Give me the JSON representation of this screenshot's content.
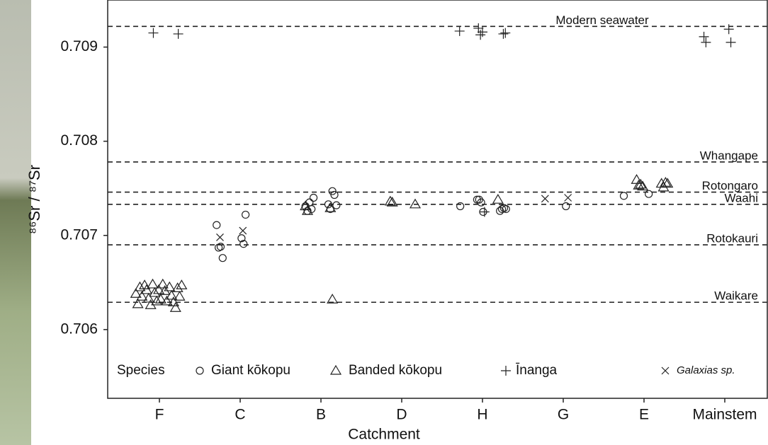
{
  "chart_data": {
    "type": "scatter",
    "xlabel": "Catchment",
    "ylabel": "⁸⁶Sr / ⁸⁷Sr",
    "categories": [
      "F",
      "C",
      "B",
      "D",
      "H",
      "G",
      "E",
      "Mainstem"
    ],
    "ylim": [
      0.70527,
      0.7095
    ],
    "yticks": [
      0.706,
      0.707,
      0.708,
      0.709
    ],
    "legend_title": "Species",
    "reference_lines": [
      {
        "label": "Modern seawater",
        "value": 0.70922
      },
      {
        "label": "Whangape",
        "value": 0.70778
      },
      {
        "label": "Rotongaro",
        "value": 0.70746
      },
      {
        "label": "Waahi",
        "value": 0.70733
      },
      {
        "label": "Rotokauri",
        "value": 0.7069
      },
      {
        "label": "Waikare",
        "value": 0.70629
      }
    ],
    "series": [
      {
        "name": "Giant kōkopu",
        "marker": "circle",
        "color": "#222222",
        "x": [
          "C",
          "C",
          "C",
          "C",
          "C",
          "C",
          "C",
          "B",
          "B",
          "B",
          "B",
          "B",
          "B",
          "B",
          "B",
          "B",
          "B",
          "H",
          "H",
          "H",
          "H",
          "H",
          "H",
          "H",
          "H",
          "H",
          "G",
          "E",
          "E"
        ],
        "values": [
          0.70711,
          0.70697,
          0.70687,
          0.70691,
          0.70688,
          0.70722,
          0.70676,
          0.70733,
          0.70731,
          0.70728,
          0.70726,
          0.70747,
          0.70735,
          0.70743,
          0.70728,
          0.70732,
          0.7074,
          0.70726,
          0.70738,
          0.70728,
          0.70738,
          0.70729,
          0.70735,
          0.70728,
          0.70725,
          0.70731,
          0.70731,
          0.70742,
          0.70744
        ]
      },
      {
        "name": "Banded kōkopu",
        "marker": "triangle",
        "color": "#222222",
        "x": [
          "F",
          "F",
          "F",
          "F",
          "F",
          "F",
          "F",
          "F",
          "F",
          "F",
          "F",
          "F",
          "F",
          "F",
          "F",
          "F",
          "F",
          "F",
          "F",
          "F",
          "F",
          "F",
          "F",
          "B",
          "B",
          "B",
          "B",
          "D",
          "D",
          "D",
          "H",
          "E",
          "E",
          "E",
          "E",
          "E",
          "E",
          "E",
          "E"
        ],
        "values": [
          0.70647,
          0.70645,
          0.70642,
          0.70636,
          0.70633,
          0.70629,
          0.70626,
          0.70623,
          0.70648,
          0.70644,
          0.70639,
          0.70635,
          0.7063,
          0.70647,
          0.70642,
          0.70638,
          0.70632,
          0.70627,
          0.70648,
          0.70645,
          0.70641,
          0.70635,
          0.7063,
          0.70731,
          0.70729,
          0.70726,
          0.70632,
          0.70736,
          0.70733,
          0.70735,
          0.70738,
          0.70759,
          0.70755,
          0.70753,
          0.70751,
          0.70754,
          0.70756,
          0.70752,
          0.70755
        ]
      },
      {
        "name": "Īnanga",
        "marker": "plus",
        "color": "#222222",
        "x": [
          "F",
          "F",
          "H",
          "H",
          "H",
          "H",
          "H",
          "H",
          "H",
          "Mainstem",
          "Mainstem",
          "Mainstem",
          "Mainstem"
        ],
        "values": [
          0.70915,
          0.70914,
          0.7092,
          0.70914,
          0.70913,
          0.70915,
          0.70916,
          0.70917,
          0.70725,
          0.70911,
          0.70919,
          0.70905,
          0.70905
        ]
      },
      {
        "name": "Galaxias sp.",
        "marker": "cross",
        "color": "#222222",
        "italic": true,
        "x": [
          "C",
          "C",
          "G",
          "G"
        ],
        "values": [
          0.70705,
          0.70698,
          0.7074,
          0.70739
        ]
      }
    ]
  }
}
